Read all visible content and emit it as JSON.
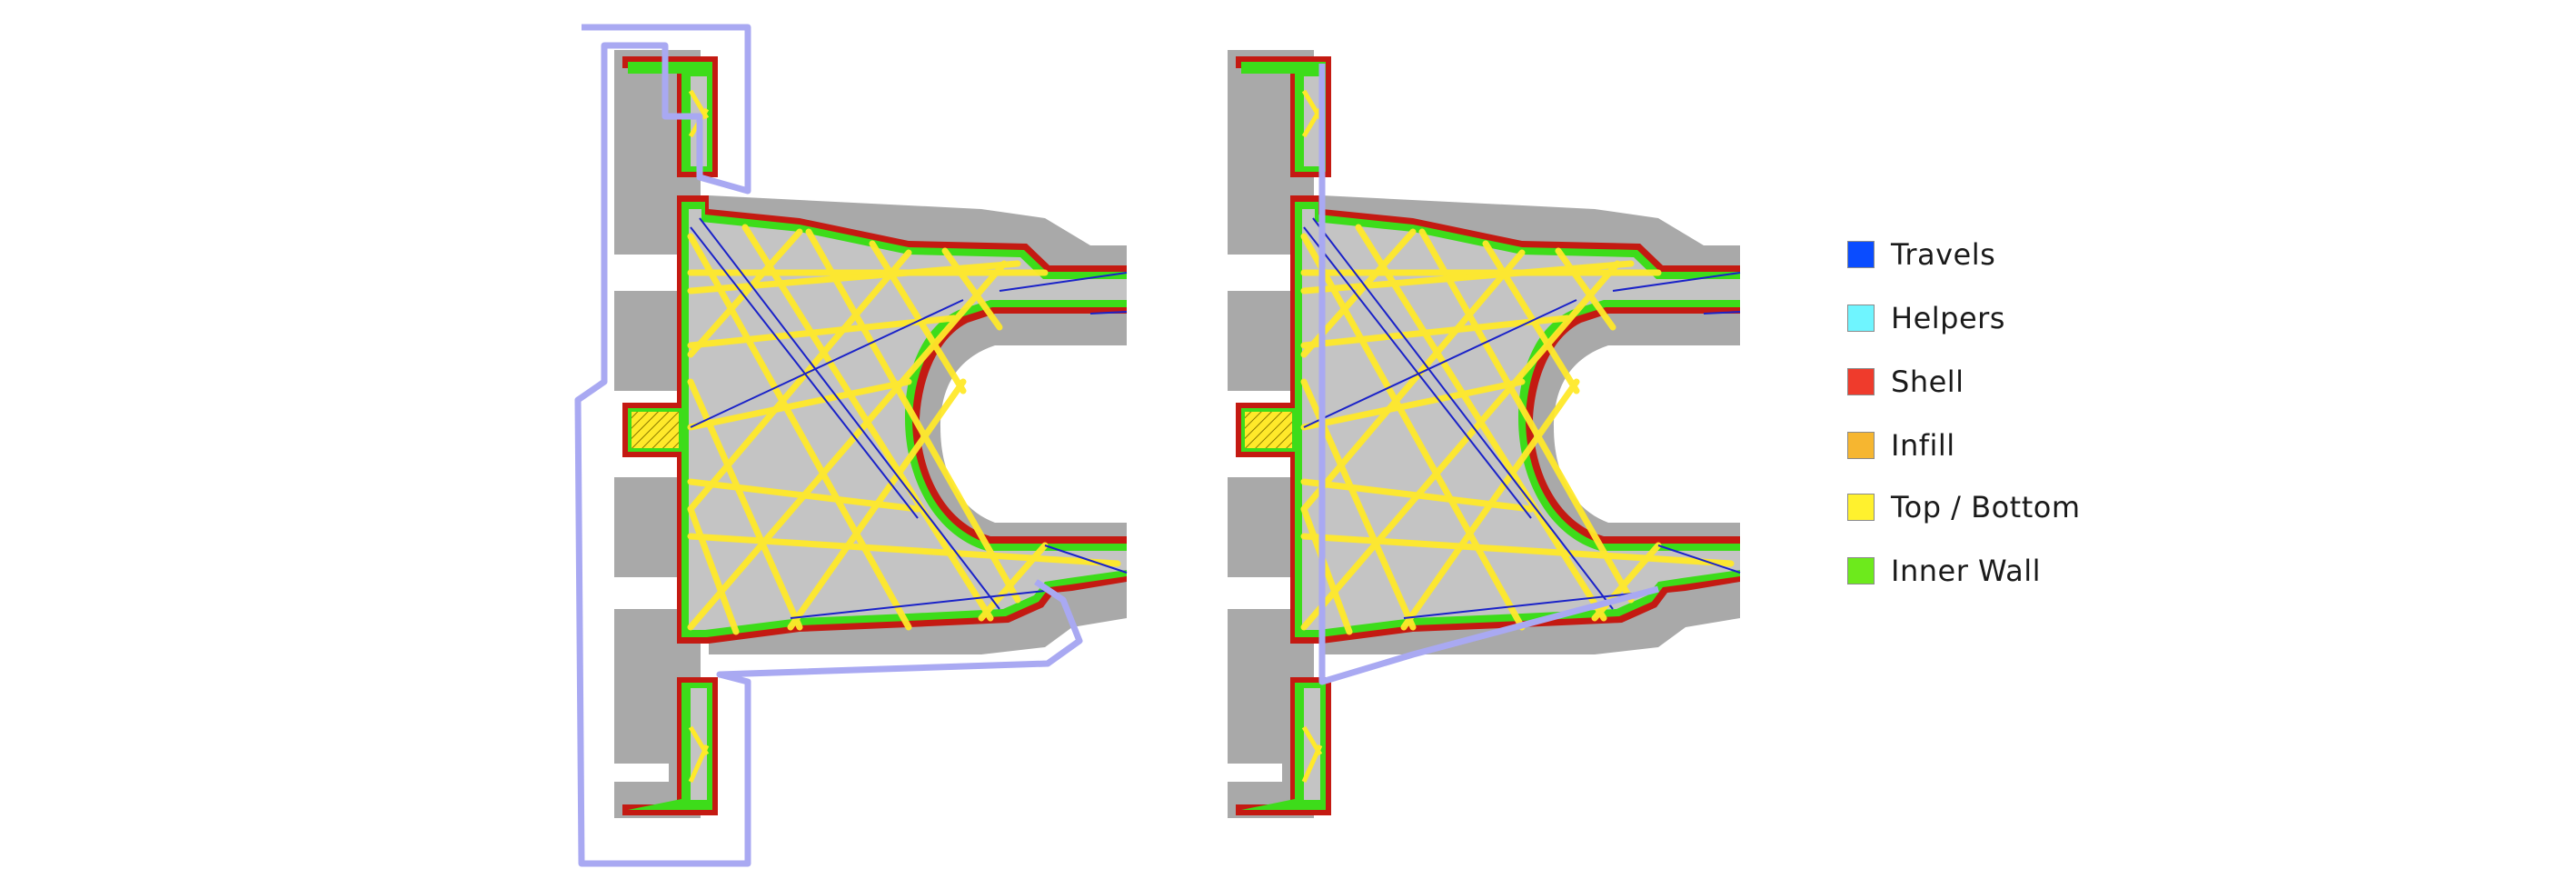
{
  "legend": {
    "items": [
      {
        "label": "Travels",
        "color": "#0a4cff"
      },
      {
        "label": "Helpers",
        "color": "#6ff5ff"
      },
      {
        "label": "Shell",
        "color": "#ef3b2c"
      },
      {
        "label": "Infill",
        "color": "#f6b630"
      },
      {
        "label": "Top / Bottom",
        "color": "#fff12e"
      },
      {
        "label": "Inner Wall",
        "color": "#6dea1c"
      }
    ]
  },
  "colors": {
    "shadow": "#a9a9a9",
    "part_fill": "#c4c4c4",
    "shell": "#c41a12",
    "inner_wall": "#3ddc1a",
    "top_bottom": "#ffe92a",
    "travel": "#1a22c8",
    "skirt": "#a9a9f2"
  },
  "diagrams": [
    {
      "name": "left-slice-view",
      "skirt": "enclosing-outline"
    },
    {
      "name": "right-slice-view",
      "skirt": "connecting-line"
    }
  ]
}
